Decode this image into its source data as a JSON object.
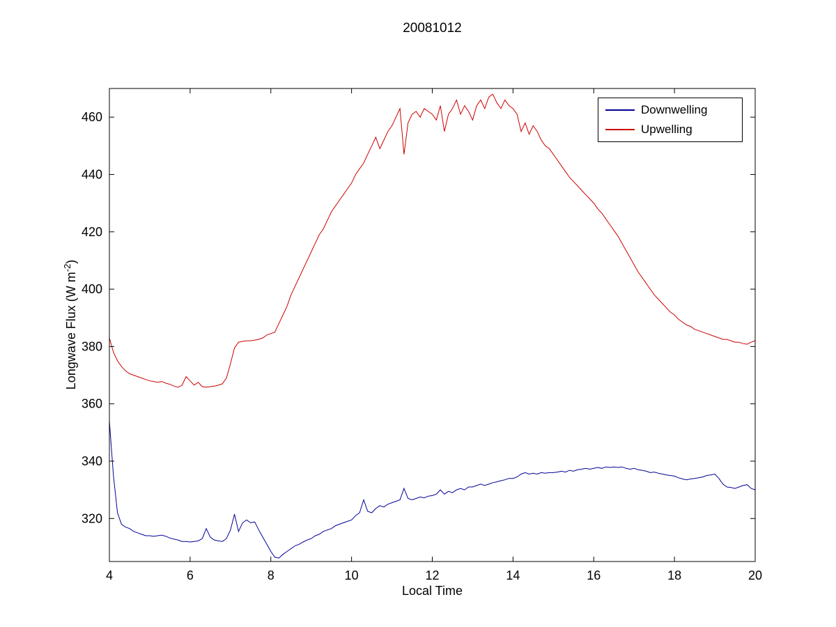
{
  "figure": {
    "background": "#ffffff"
  },
  "chart_data": {
    "type": "line",
    "title": "20081012",
    "xlabel": "Local Time",
    "ylabel": {
      "main": "Longwave Flux (W m",
      "sup": "-2",
      "end": ")"
    },
    "xlim": [
      4,
      20
    ],
    "ylim": [
      305,
      470
    ],
    "xticks": [
      4,
      6,
      8,
      10,
      12,
      14,
      16,
      18,
      20
    ],
    "yticks": [
      320,
      340,
      360,
      380,
      400,
      420,
      440,
      460
    ],
    "grid": false,
    "legend": {
      "position": "top-right"
    },
    "x_start": 4,
    "x_step": 0.1,
    "series": [
      {
        "name": "Downwelling",
        "color": "#000099",
        "values": [
          354,
          335,
          322,
          318,
          317,
          316.5,
          315.5,
          315,
          314.5,
          314,
          314,
          313.8,
          314,
          314.2,
          313.8,
          313.2,
          312.8,
          312.5,
          312,
          312,
          311.8,
          312,
          312.2,
          313,
          316.5,
          313.5,
          312.5,
          312.2,
          312,
          313,
          316,
          321.5,
          315.5,
          318.5,
          319.5,
          318.5,
          318.8,
          316,
          313.5,
          311,
          308.5,
          306.5,
          306.2,
          307.5,
          308.5,
          309.5,
          310.5,
          311,
          311.8,
          312.5,
          313,
          314,
          314.5,
          315.5,
          316,
          316.5,
          317.5,
          318,
          318.5,
          319,
          319.5,
          321,
          322,
          326.5,
          322.5,
          322,
          323.5,
          324.5,
          324,
          325,
          325.5,
          326,
          326.5,
          330.5,
          327,
          326.5,
          327,
          327.5,
          327.2,
          327.8,
          328,
          328.5,
          330,
          328.5,
          329.5,
          329,
          330,
          330.5,
          330,
          331,
          331,
          331.5,
          332,
          331.5,
          332,
          332.5,
          332.8,
          333.2,
          333.5,
          334,
          334,
          334.5,
          335.5,
          336,
          335.5,
          335.8,
          335.5,
          336,
          335.8,
          336,
          336,
          336.2,
          336.5,
          336.2,
          336.8,
          336.5,
          337,
          337.2,
          337.5,
          337.2,
          337.5,
          337.8,
          337.5,
          338,
          337.8,
          338,
          337.8,
          338,
          337.5,
          337.2,
          337.5,
          337,
          336.8,
          336.5,
          336,
          336.2,
          335.8,
          335.5,
          335.2,
          335,
          334.8,
          334.2,
          333.8,
          333.5,
          333.8,
          334,
          334.2,
          334.5,
          335,
          335.2,
          335.5,
          334,
          332,
          331,
          330.8,
          330.5,
          331,
          331.5,
          331.8,
          330.5,
          330
        ]
      },
      {
        "name": "Upwelling",
        "color": "#CC0000",
        "values": [
          383,
          378,
          375,
          373,
          371.5,
          370.5,
          370,
          369.5,
          369,
          368.5,
          368,
          367.8,
          367.5,
          367.8,
          367.2,
          366.8,
          366.2,
          365.8,
          366.5,
          369.5,
          368,
          366.5,
          367.5,
          366,
          365.8,
          366,
          366.2,
          366.5,
          367,
          369,
          374,
          379.5,
          381.5,
          381.8,
          382,
          382,
          382.2,
          382.5,
          383,
          384,
          384.5,
          385,
          388,
          391,
          394,
          398,
          401,
          404,
          407,
          410,
          413,
          416,
          419,
          421,
          424,
          427,
          429,
          431,
          433,
          435,
          437,
          440,
          442,
          444,
          447,
          450,
          453,
          449,
          452,
          455,
          457,
          460,
          463,
          447,
          458,
          461,
          462,
          460,
          463,
          462,
          461,
          459,
          464,
          455,
          461,
          463,
          466,
          461,
          464,
          462,
          459,
          464,
          466,
          463,
          467,
          468,
          465,
          463,
          466,
          464,
          463,
          461,
          455,
          458,
          454,
          457,
          455,
          452,
          450,
          449,
          447,
          445,
          443,
          441,
          439,
          437.5,
          436,
          434.5,
          433,
          431.5,
          430,
          428,
          426.5,
          424.5,
          422.5,
          420.5,
          418.5,
          416,
          413.5,
          411,
          408.5,
          406,
          404,
          402,
          400,
          398,
          396.5,
          395,
          393.5,
          392,
          391,
          389.5,
          388.5,
          387.5,
          387,
          386,
          385.5,
          385,
          384.5,
          384,
          383.5,
          383,
          382.5,
          382.5,
          382,
          381.5,
          381.5,
          381,
          380.8,
          381.5,
          382
        ]
      }
    ]
  }
}
